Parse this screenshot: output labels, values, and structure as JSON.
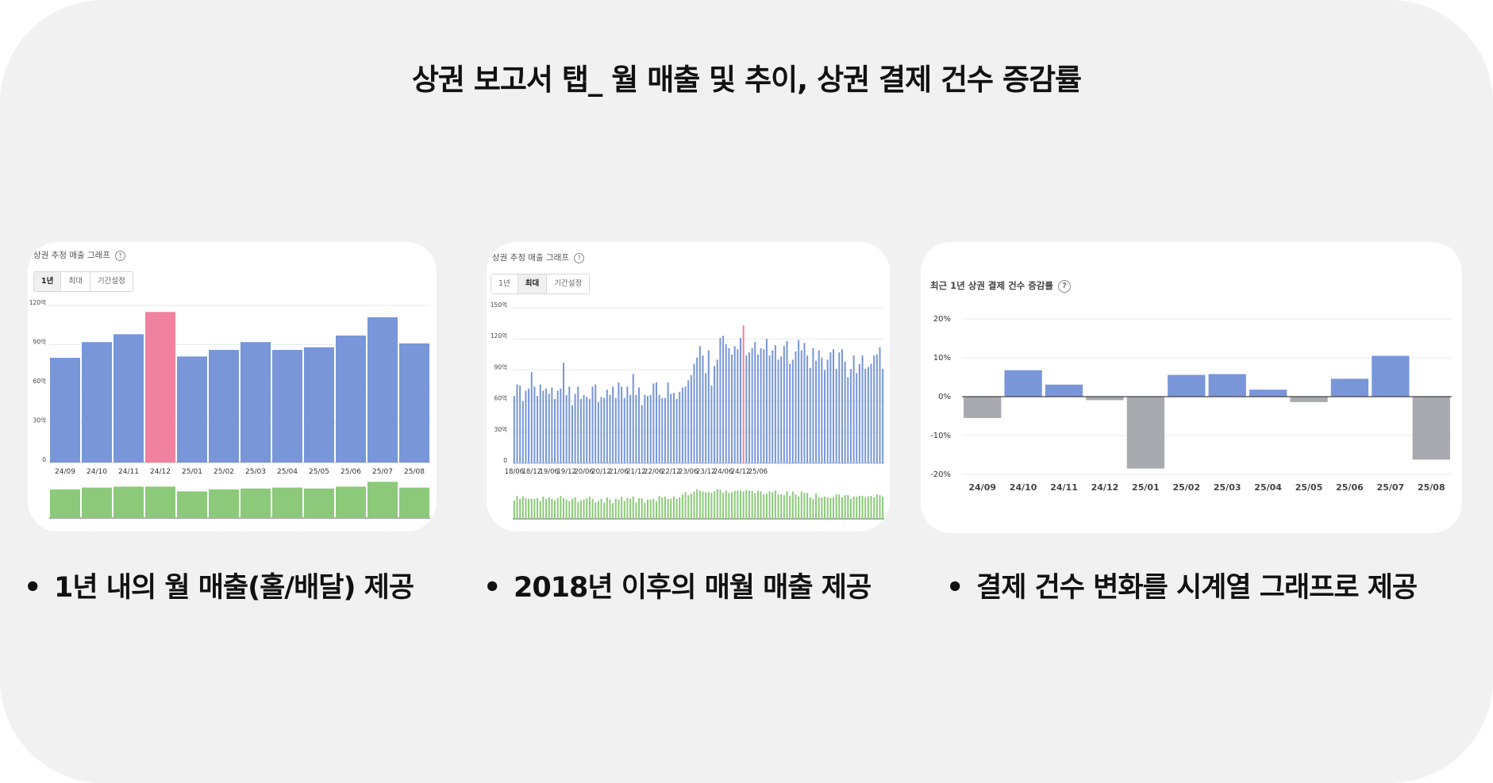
{
  "title": "상권 보고서 탭_ 월 매출 및 추이, 상권 결제 건수 증감률",
  "colors": {
    "bar": "#7896d8",
    "highlight": "#f0819f",
    "volume": "#8cc97a",
    "negative": "#a8aab0",
    "gridline": "#e8e8e8"
  },
  "card1": {
    "title": "상권 추정 매출 그래프",
    "help": "?",
    "tabs": [
      "1년",
      "최대",
      "기간설정"
    ],
    "active_tab": "1년"
  },
  "card2": {
    "title": "상권 추정 매출 그래프",
    "help": "?",
    "tabs": [
      "1년",
      "최대",
      "기간설정"
    ],
    "active_tab": "최대"
  },
  "card3": {
    "title": "최근 1년 상권 결제 건수 증감률",
    "help": "?"
  },
  "bullets": [
    "1년 내의 월 매출(홀/배달) 제공",
    "2018년 이후의 매월 매출 제공",
    "결제 건수 변화를 시계열 그래프로 제공"
  ],
  "bullet_glyph": "•",
  "chart_data": [
    {
      "type": "bar",
      "categories": [
        "24/09",
        "24/10",
        "24/11",
        "24/12",
        "25/01",
        "25/02",
        "25/03",
        "25/04",
        "25/05",
        "25/06",
        "25/07",
        "25/08"
      ],
      "values": [
        80,
        92,
        98,
        115,
        81,
        86,
        92,
        86,
        88,
        97,
        111,
        91
      ],
      "highlight_category": "24/12",
      "ytick_labels": [
        "0",
        "30억",
        "60억",
        "90억",
        "120억"
      ],
      "ytick_values": [
        0,
        30,
        60,
        90,
        120
      ],
      "ylim": [
        0,
        120
      ],
      "volume_values": [
        30,
        32,
        33,
        33,
        28,
        30,
        31,
        32,
        31,
        33,
        38,
        32
      ],
      "volume_max": 40
    },
    {
      "type": "bar",
      "x_tick_labels": [
        "18/06",
        "18/12",
        "19/06",
        "19/12",
        "20/06",
        "20/12",
        "21/06",
        "21/12",
        "22/06",
        "22/12",
        "23/06",
        "23/12",
        "24/06",
        "24/12",
        "25/06"
      ],
      "values": [
        65,
        76,
        75,
        60,
        70,
        72,
        88,
        74,
        65,
        76,
        70,
        72,
        67,
        73,
        62,
        70,
        72,
        97,
        66,
        74,
        56,
        67,
        74,
        62,
        66,
        64,
        62,
        74,
        76,
        59,
        64,
        63,
        71,
        66,
        74,
        63,
        78,
        74,
        63,
        74,
        66,
        86,
        66,
        73,
        56,
        66,
        65,
        66,
        77,
        78,
        66,
        63,
        63,
        78,
        67,
        68,
        62,
        69,
        73,
        74,
        80,
        85,
        96,
        102,
        113,
        104,
        87,
        109,
        75,
        94,
        100,
        121,
        123,
        115,
        111,
        105,
        113,
        110,
        121,
        133,
        104,
        107,
        111,
        117,
        105,
        111,
        110,
        120,
        104,
        109,
        114,
        100,
        103,
        113,
        118,
        96,
        100,
        108,
        119,
        109,
        116,
        104,
        92,
        111,
        99,
        109,
        102,
        90,
        100,
        107,
        110,
        91,
        107,
        110,
        98,
        83,
        91,
        104,
        87,
        96,
        104,
        91,
        93,
        96,
        104,
        105,
        112,
        91
      ],
      "highlight_index": 79,
      "ytick_labels": [
        "0",
        "30억",
        "60억",
        "90억",
        "120억",
        "150억"
      ],
      "ytick_values": [
        0,
        30,
        60,
        90,
        120,
        150
      ],
      "ylim": [
        0,
        150
      ],
      "volume_values": [
        25,
        31,
        27,
        30,
        28,
        27,
        27,
        27,
        28,
        24,
        30,
        27,
        29,
        27,
        25,
        28,
        31,
        28,
        26,
        24,
        27,
        29,
        23,
        25,
        26,
        28,
        30,
        27,
        22,
        24,
        27,
        22,
        29,
        26,
        21,
        27,
        26,
        30,
        24,
        28,
        27,
        30,
        22,
        28,
        28,
        22,
        26,
        26,
        27,
        24,
        31,
        29,
        30,
        27,
        27,
        30,
        27,
        29,
        33,
        36,
        32,
        34,
        37,
        40,
        38,
        37,
        36,
        36,
        35,
        37,
        40,
        39,
        35,
        38,
        35,
        36,
        38,
        38,
        38,
        37,
        39,
        38,
        38,
        35,
        38,
        37,
        33,
        34,
        37,
        36,
        38,
        33,
        33,
        32,
        37,
        31,
        37,
        33,
        30,
        37,
        35,
        35,
        29,
        27,
        34,
        29,
        29,
        30,
        29,
        28,
        29,
        33,
        33,
        29,
        32,
        32,
        27,
        30,
        30,
        31,
        31,
        29,
        30,
        31,
        29,
        33,
        32,
        30
      ],
      "volume_max": 45
    },
    {
      "type": "bar",
      "categories": [
        "24/09",
        "24/10",
        "24/11",
        "24/12",
        "25/01",
        "25/02",
        "25/03",
        "25/04",
        "25/05",
        "25/06",
        "25/07",
        "25/08"
      ],
      "values": [
        -5.5,
        6.8,
        3.1,
        -0.9,
        -18.5,
        5.6,
        5.8,
        1.8,
        -1.4,
        4.6,
        10.5,
        -16.2
      ],
      "ytick_labels": [
        "-20%",
        "-10%",
        "0%",
        "10%",
        "20%"
      ],
      "ytick_values": [
        -20,
        -10,
        0,
        10,
        20
      ],
      "ylim": [
        -20,
        20
      ]
    }
  ]
}
